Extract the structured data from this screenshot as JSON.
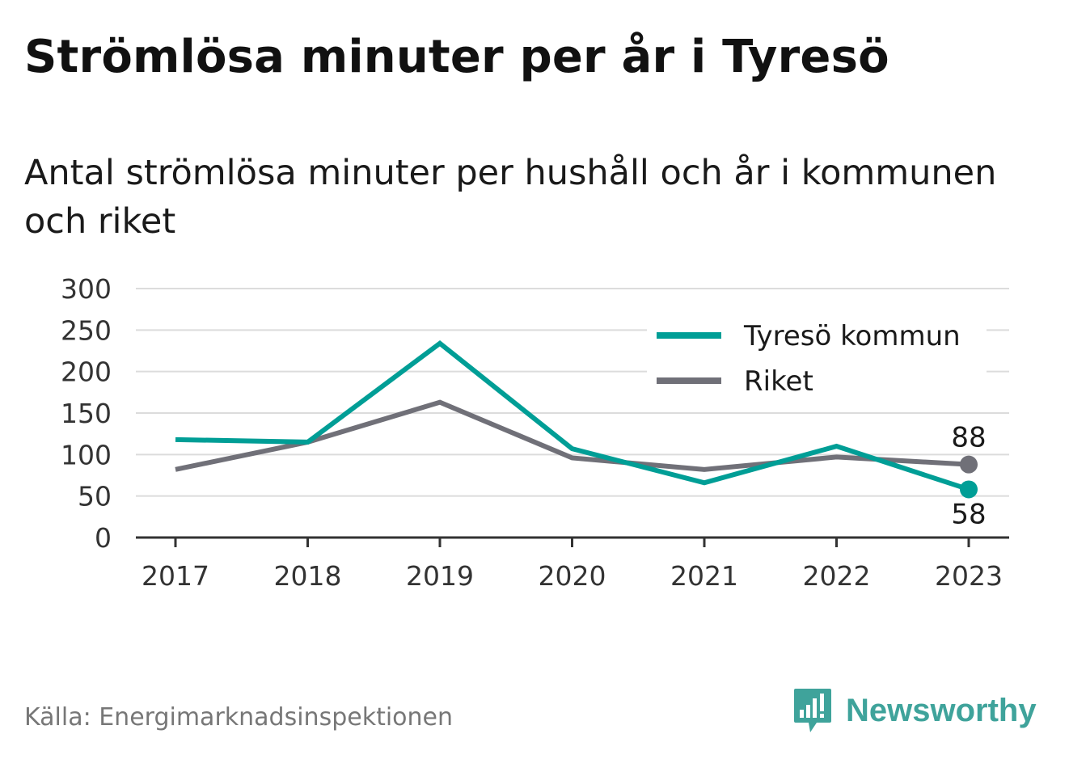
{
  "header": {
    "title": "Strömlösa minuter per år i Tyresö",
    "subtitle": "Antal strömlösa minuter per hushåll och år i kommunen och riket"
  },
  "footer": {
    "source": "Källa: Energimarknadsinspektionen",
    "brand": "Newsworthy",
    "brand_icon": "newsworthy-logo-icon",
    "brand_color": "#3fa39b"
  },
  "chart_data": {
    "type": "line",
    "x": [
      "2017",
      "2018",
      "2019",
      "2020",
      "2021",
      "2022",
      "2023"
    ],
    "ylim": [
      0,
      300
    ],
    "yticks": [
      "0",
      "50",
      "100",
      "150",
      "200",
      "250",
      "300"
    ],
    "grid": true,
    "legend_position": "top-right",
    "series": [
      {
        "name": "Tyresö kommun",
        "color": "#009e96",
        "values": [
          118,
          115,
          234,
          107,
          66,
          110,
          58
        ],
        "end_label": "58"
      },
      {
        "name": "Riket",
        "color": "#707078",
        "values": [
          82,
          115,
          163,
          96,
          82,
          97,
          88
        ],
        "end_label": "88"
      }
    ]
  }
}
